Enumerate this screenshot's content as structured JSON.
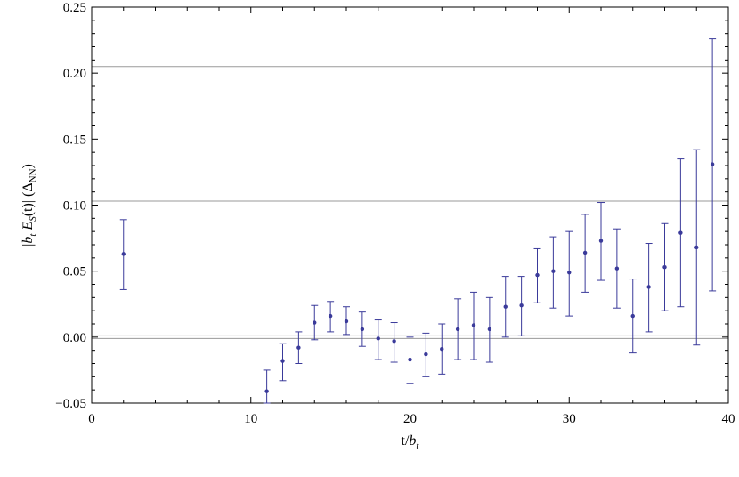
{
  "chart_data": {
    "type": "scatter",
    "xlabel": {
      "main": "t/",
      "var": "b",
      "sub": "t"
    },
    "ylabel": {
      "pre": "|",
      "var1": "b",
      "sub1": "t",
      "mid": " ",
      "var2": "E",
      "sub2": "S",
      "post": "(t)| (Δ",
      "unit_sub": "NN",
      "close": ")"
    },
    "xlim": [
      0,
      40
    ],
    "ylim": [
      -0.05,
      0.25
    ],
    "x_ticks": [
      "0",
      "10",
      "20",
      "30",
      "40"
    ],
    "y_ticks": [
      "−0.05",
      "0.00",
      "0.05",
      "0.10",
      "0.15",
      "0.20",
      "0.25"
    ],
    "reference_lines_y": [
      0.205,
      0.103,
      0.001,
      -0.001
    ],
    "grid": false,
    "series": [
      {
        "marker_color": "#3a3a9a",
        "points": [
          {
            "x": 2,
            "y": 0.063,
            "err_low": 0.036,
            "err_high": 0.089
          },
          {
            "x": 11,
            "y": -0.041,
            "err_low": -0.05,
            "err_high": -0.025
          },
          {
            "x": 12,
            "y": -0.018,
            "err_low": -0.033,
            "err_high": -0.005
          },
          {
            "x": 13,
            "y": -0.008,
            "err_low": -0.02,
            "err_high": 0.004
          },
          {
            "x": 14,
            "y": 0.011,
            "err_low": -0.002,
            "err_high": 0.024
          },
          {
            "x": 15,
            "y": 0.016,
            "err_low": 0.004,
            "err_high": 0.027
          },
          {
            "x": 16,
            "y": 0.012,
            "err_low": 0.002,
            "err_high": 0.023
          },
          {
            "x": 17,
            "y": 0.006,
            "err_low": -0.007,
            "err_high": 0.019
          },
          {
            "x": 18,
            "y": -0.001,
            "err_low": -0.017,
            "err_high": 0.013
          },
          {
            "x": 19,
            "y": -0.003,
            "err_low": -0.019,
            "err_high": 0.011
          },
          {
            "x": 20,
            "y": -0.017,
            "err_low": -0.035,
            "err_high": 0.0
          },
          {
            "x": 21,
            "y": -0.013,
            "err_low": -0.03,
            "err_high": 0.003
          },
          {
            "x": 22,
            "y": -0.009,
            "err_low": -0.028,
            "err_high": 0.01
          },
          {
            "x": 23,
            "y": 0.006,
            "err_low": -0.017,
            "err_high": 0.029
          },
          {
            "x": 24,
            "y": 0.009,
            "err_low": -0.017,
            "err_high": 0.034
          },
          {
            "x": 25,
            "y": 0.006,
            "err_low": -0.019,
            "err_high": 0.03
          },
          {
            "x": 26,
            "y": 0.023,
            "err_low": 0.0,
            "err_high": 0.046
          },
          {
            "x": 27,
            "y": 0.024,
            "err_low": 0.001,
            "err_high": 0.046
          },
          {
            "x": 28,
            "y": 0.047,
            "err_low": 0.026,
            "err_high": 0.067
          },
          {
            "x": 29,
            "y": 0.05,
            "err_low": 0.022,
            "err_high": 0.076
          },
          {
            "x": 30,
            "y": 0.049,
            "err_low": 0.016,
            "err_high": 0.08
          },
          {
            "x": 31,
            "y": 0.064,
            "err_low": 0.034,
            "err_high": 0.093
          },
          {
            "x": 32,
            "y": 0.073,
            "err_low": 0.043,
            "err_high": 0.102
          },
          {
            "x": 33,
            "y": 0.052,
            "err_low": 0.022,
            "err_high": 0.082
          },
          {
            "x": 34,
            "y": 0.016,
            "err_low": -0.012,
            "err_high": 0.044
          },
          {
            "x": 35,
            "y": 0.038,
            "err_low": 0.004,
            "err_high": 0.071
          },
          {
            "x": 36,
            "y": 0.053,
            "err_low": 0.02,
            "err_high": 0.086
          },
          {
            "x": 37,
            "y": 0.079,
            "err_low": 0.023,
            "err_high": 0.135
          },
          {
            "x": 38,
            "y": 0.068,
            "err_low": -0.006,
            "err_high": 0.142
          },
          {
            "x": 39,
            "y": 0.131,
            "err_low": 0.035,
            "err_high": 0.226
          }
        ]
      }
    ]
  }
}
